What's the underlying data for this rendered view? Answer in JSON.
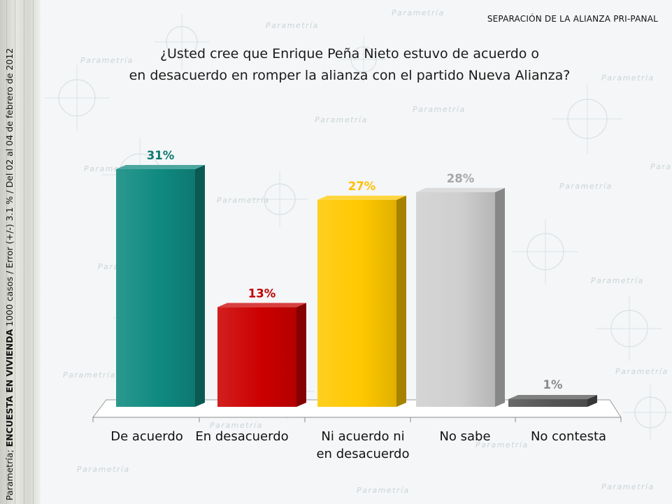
{
  "side_text": {
    "source": "Parametría; ",
    "survey": "ENCUESTA EN VIVIENDA",
    "details": " 1000 casos / Error (+/-) 3.1 % / Del 02 al 04 de febrero de 2012"
  },
  "slide_tag": "SEPARACIÓN DE LA ALIANZA PRI-PANAL",
  "question": {
    "line1": "¿Usted cree que Enrique Peña Nieto estuvo de acuerdo o",
    "line2": "en desacuerdo en romper la alianza con el partido Nueva Alianza?"
  },
  "watermark_text": "Parametría",
  "chart_data": {
    "type": "bar",
    "title": "¿Usted cree que Enrique Peña Nieto estuvo de acuerdo o en desacuerdo en romper la alianza con el partido Nueva Alianza?",
    "categories": [
      "De acuerdo",
      "En desacuerdo",
      "Ni acuerdo ni en desacuerdo",
      "No sabe",
      "No contesta"
    ],
    "category_lines": [
      [
        "De acuerdo"
      ],
      [
        "En desacuerdo"
      ],
      [
        "Ni acuerdo ni",
        "en desacuerdo"
      ],
      [
        "No sabe"
      ],
      [
        "No contesta"
      ]
    ],
    "values": [
      31,
      13,
      27,
      28,
      1
    ],
    "value_labels": [
      "31%",
      "13%",
      "27%",
      "28%",
      "1%"
    ],
    "colors": [
      "#0f8a80",
      "#cc0000",
      "#ffc800",
      "#cfcfcf",
      "#555555"
    ],
    "label_colors": [
      "#0e7a72",
      "#c00000",
      "#ffbf00",
      "#a6a6a6",
      "#8a8a8a"
    ],
    "unit": "%",
    "ylim": [
      0,
      31
    ],
    "grid": false,
    "xlabel": "",
    "ylabel": ""
  }
}
